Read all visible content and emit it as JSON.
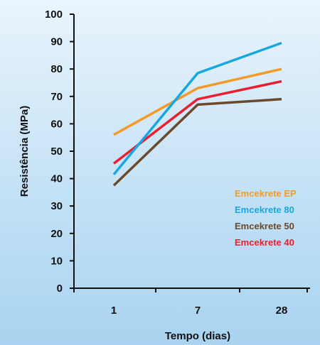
{
  "chart_data": {
    "type": "line",
    "title": "",
    "xlabel": "Tempo (dias)",
    "ylabel": "Resistência (MPa)",
    "categories": [
      "1",
      "7",
      "28"
    ],
    "ylim": [
      0,
      100
    ],
    "yticks": [
      "0",
      "10",
      "20",
      "30",
      "40",
      "50",
      "60",
      "70",
      "80",
      "90",
      "100"
    ],
    "grid": false,
    "legend_position": "right-middle",
    "series": [
      {
        "name": "Emcekrete EP",
        "color": "#f39a2a",
        "values": [
          56,
          73,
          80
        ]
      },
      {
        "name": "Emcekrete 80",
        "color": "#16a8e0",
        "values": [
          41.5,
          78.5,
          89.5
        ]
      },
      {
        "name": "Emcekrete 50",
        "color": "#6b4a2c",
        "values": [
          37.5,
          67,
          69
        ]
      },
      {
        "name": "Emcekrete 40",
        "color": "#e8202f",
        "values": [
          45.5,
          69,
          75.5
        ]
      }
    ]
  }
}
